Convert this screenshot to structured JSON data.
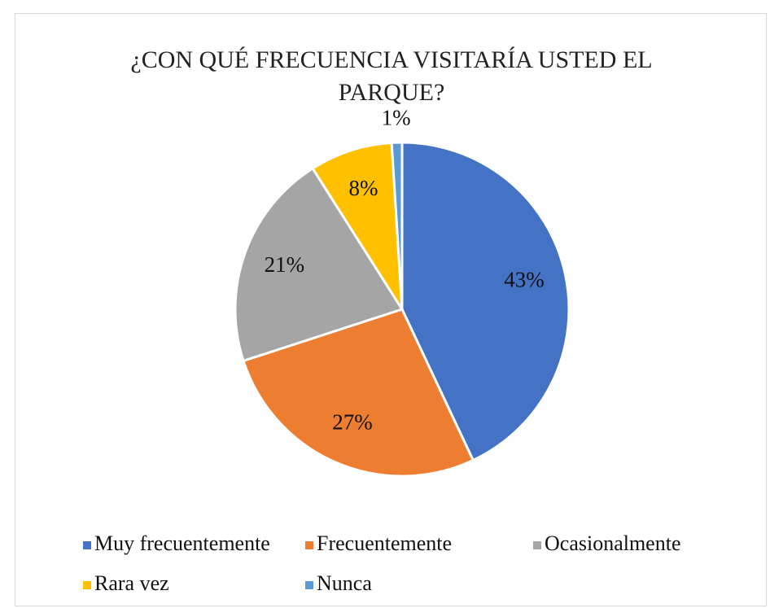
{
  "chart_data": {
    "type": "pie",
    "title": "¿CON QUÉ FRECUENCIA VISITARÍA USTED EL PARQUE?",
    "categories": [
      "Muy frecuentemente",
      "Frecuentemente",
      "Ocasionalmente",
      "Rara vez",
      "Nunca"
    ],
    "values": [
      43,
      27,
      21,
      8,
      1
    ],
    "value_labels": [
      "43%",
      "27%",
      "21%",
      "8%",
      "1%"
    ],
    "colors": [
      "#4472c4",
      "#ed7d31",
      "#a5a5a5",
      "#ffc000",
      "#5b9bd5"
    ],
    "legend": "bottom"
  }
}
